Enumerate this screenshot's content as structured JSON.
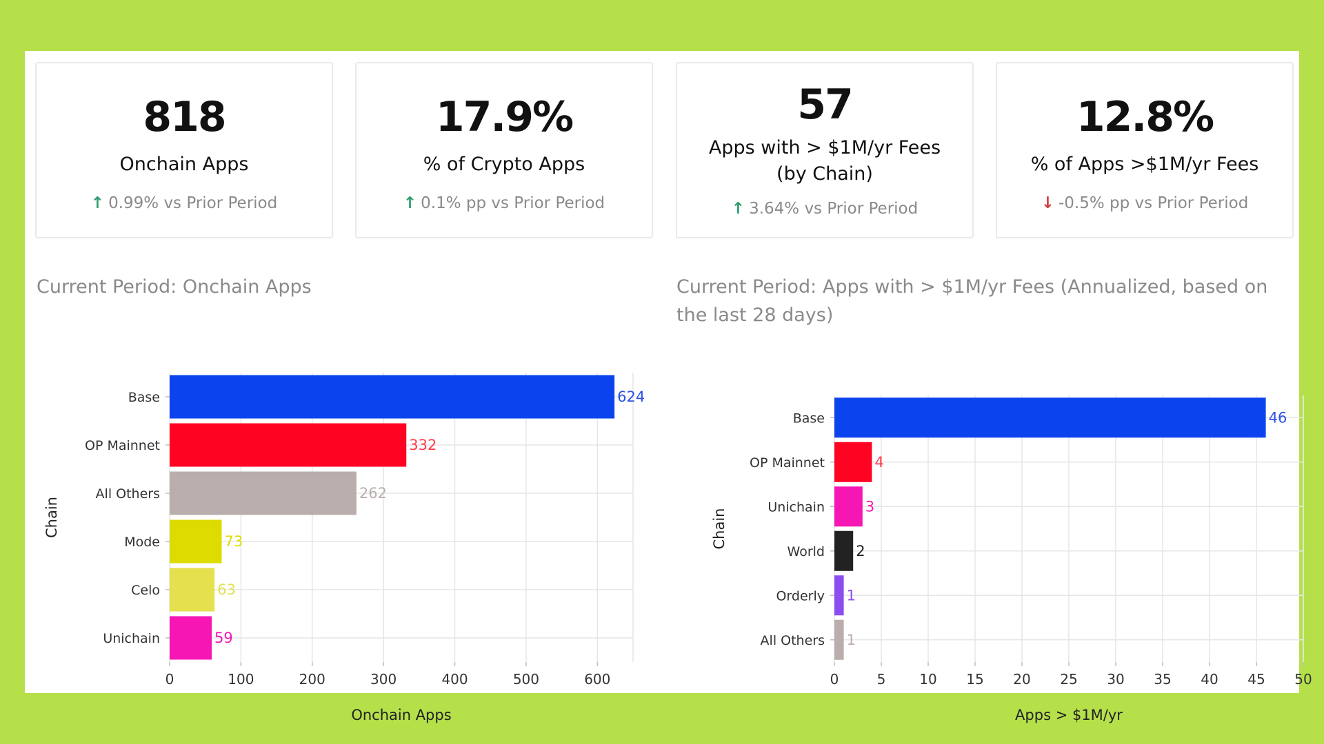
{
  "kpis": [
    {
      "value": "818",
      "label": "Onchain Apps",
      "direction": "up",
      "delta": "0.99% vs Prior Period"
    },
    {
      "value": "17.9%",
      "label": "% of Crypto Apps",
      "direction": "up",
      "delta": "0.1% pp vs Prior Period"
    },
    {
      "value": "57",
      "label": "Apps with > $1M/yr Fees (by Chain)",
      "direction": "up",
      "delta": "3.64% vs Prior Period"
    },
    {
      "value": "12.8%",
      "label": "% of Apps >$1M/yr Fees",
      "direction": "down",
      "delta": "-0.5% pp vs Prior Period"
    }
  ],
  "chart_data": [
    {
      "type": "bar",
      "orientation": "horizontal",
      "title": "Current Period: Onchain Apps",
      "xlabel": "Onchain Apps",
      "ylabel": "Chain",
      "categories": [
        "Base",
        "OP Mainnet",
        "All Others",
        "Mode",
        "Celo",
        "Unichain"
      ],
      "values": [
        624,
        332,
        262,
        73,
        63,
        59
      ],
      "colors": [
        "#0b44ef",
        "#ff0323",
        "#b9aeac",
        "#dedb00",
        "#e5e04d",
        "#f516b4"
      ],
      "label_colors": [
        "#2d50e6",
        "#ff3b4a",
        "#b9aeac",
        "#dedb00",
        "#e5e04d",
        "#f516b4"
      ],
      "xlim": [
        0,
        650
      ],
      "xticks": [
        0,
        100,
        200,
        300,
        400,
        500,
        600
      ],
      "grid": true,
      "legend": "none"
    },
    {
      "type": "bar",
      "orientation": "horizontal",
      "title": "Current Period: Apps with > $1M/yr Fees (Annualized, based on the last 28 days)",
      "xlabel": "Apps > $1M/yr",
      "ylabel": "Chain",
      "categories": [
        "Base",
        "OP Mainnet",
        "Unichain",
        "World",
        "Orderly",
        "All Others"
      ],
      "values": [
        46,
        4,
        3,
        2,
        1,
        1
      ],
      "colors": [
        "#0b44ef",
        "#ff0323",
        "#f516b4",
        "#222222",
        "#8c4df0",
        "#b9aeac"
      ],
      "label_colors": [
        "#2d50e6",
        "#ff3b4a",
        "#f516b4",
        "#222222",
        "#8c4df0",
        "#b9aeac"
      ],
      "xlim": [
        0,
        50
      ],
      "xticks": [
        0,
        5,
        10,
        15,
        20,
        25,
        30,
        35,
        40,
        45,
        50
      ],
      "grid": true,
      "legend": "none"
    }
  ]
}
